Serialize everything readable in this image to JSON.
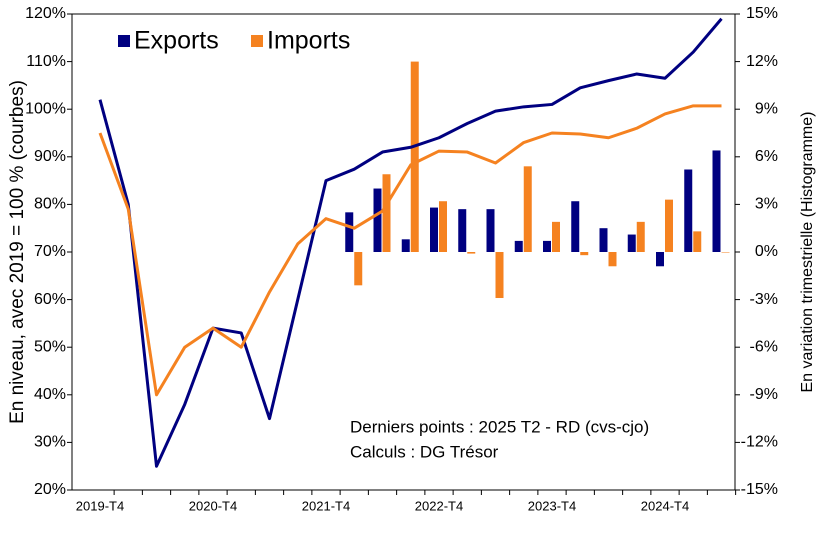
{
  "chart_data": {
    "type": "combo",
    "categories": [
      "2019-T4",
      null,
      null,
      null,
      "2020-T4",
      null,
      null,
      null,
      "2021-T4",
      null,
      null,
      null,
      "2022-T4",
      null,
      null,
      null,
      "2023-T4",
      null,
      null,
      null,
      "2024-T4",
      null,
      null
    ],
    "series": [
      {
        "name": "Exports",
        "color": "#000080",
        "values": [
          102,
          80,
          25,
          38,
          54,
          53,
          35,
          60,
          85,
          87.4,
          91,
          92,
          94,
          97,
          99.6,
          100.5,
          101,
          104.5,
          106,
          107.4,
          106.5,
          112,
          119
        ],
        "bar_values": [
          null,
          null,
          null,
          null,
          null,
          null,
          null,
          null,
          null,
          2.5,
          4.0,
          0.8,
          2.8,
          2.7,
          2.7,
          0.7,
          0.7,
          3.2,
          1.5,
          1.1,
          -0.9,
          5.2,
          6.4
        ]
      },
      {
        "name": "Imports",
        "color": "#f58220",
        "values": [
          95,
          79,
          40,
          50,
          54,
          50,
          61.6,
          71.7,
          77,
          75,
          78.6,
          88.3,
          91.2,
          91,
          88.7,
          93,
          95,
          94.8,
          94,
          96,
          99,
          100.7,
          100.7
        ],
        "bar_values": [
          null,
          null,
          null,
          null,
          null,
          null,
          null,
          null,
          null,
          -2.1,
          4.9,
          12.0,
          3.2,
          -0.1,
          -2.9,
          5.4,
          1.9,
          -0.2,
          -0.9,
          1.9,
          3.3,
          1.3,
          0
        ]
      }
    ],
    "ylabel": "En niveau, avec 2019 = 100 % (courbes)",
    "y2label": "En variation trimestrielle  (Histogramme)",
    "ylim": [
      20,
      120
    ],
    "yticks": [
      {
        "value": 20,
        "label": "20%"
      },
      {
        "value": 30,
        "label": "30%"
      },
      {
        "value": 40,
        "label": "40%"
      },
      {
        "value": 50,
        "label": "50%"
      },
      {
        "value": 60,
        "label": "60%"
      },
      {
        "value": 70,
        "label": "70%"
      },
      {
        "value": 80,
        "label": "80%"
      },
      {
        "value": 90,
        "label": "90%"
      },
      {
        "value": 100,
        "label": "100%"
      },
      {
        "value": 110,
        "label": "110%"
      },
      {
        "value": 120,
        "label": "120%"
      }
    ],
    "y2lim": [
      -15,
      15
    ],
    "y2ticks": [
      {
        "value": -15,
        "label": "-15%"
      },
      {
        "value": -12,
        "label": "-12%"
      },
      {
        "value": -9,
        "label": "-9%"
      },
      {
        "value": -6,
        "label": "-6%"
      },
      {
        "value": -3,
        "label": "-3%"
      },
      {
        "value": 0,
        "label": "0%"
      },
      {
        "value": 3,
        "label": "3%"
      },
      {
        "value": 6,
        "label": "6%"
      },
      {
        "value": 9,
        "label": "9%"
      },
      {
        "value": 12,
        "label": "12%"
      },
      {
        "value": 15,
        "label": "15%"
      }
    ],
    "annotations": [
      "Derniers points : 2025 T2 - RD (cvs-cjo)",
      "Calculs : DG Trésor"
    ],
    "legend": "top-left",
    "grid": false
  }
}
